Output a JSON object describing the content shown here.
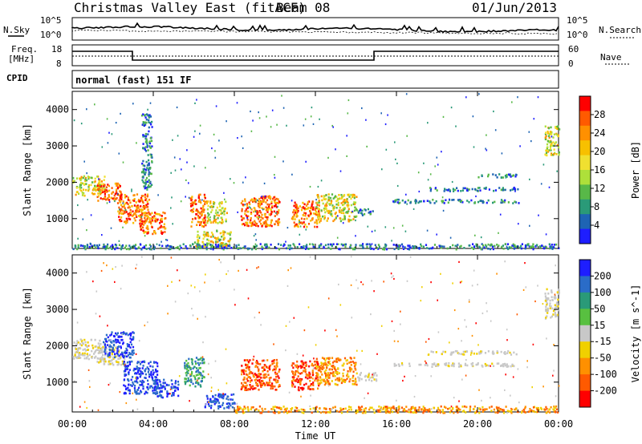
{
  "header": {
    "station": "Christmas Valley East (fitACF)",
    "beam": "Beam 08",
    "date": "01/Jun/2013"
  },
  "status_panels": {
    "nsky_label": "N.Sky",
    "nsky_top": "10^5",
    "nsky_bottom": "10^0",
    "nsearch_label": "N.Search",
    "freq_label_top": "Freq.",
    "freq_label_bottom": "[MHz]",
    "freq_tick_top": "18",
    "freq_tick_bottom": "8",
    "nave_tick_top": "60",
    "nave_tick_bottom": "0",
    "nave_label": "Nave",
    "cpid_label": "CPID",
    "cpid_text": "normal (fast) 151 IF"
  },
  "chart_data": [
    {
      "type": "heatmap",
      "panel": "power",
      "xlabel": "",
      "ylabel": "Slant Range [km]",
      "x_ticks": [
        "00:00",
        "04:00",
        "08:00",
        "12:00",
        "16:00",
        "20:00",
        "00:00"
      ],
      "x_range_hours": [
        0,
        24
      ],
      "y_ticks": [
        1000,
        2000,
        3000,
        4000
      ],
      "y_range_km": [
        180,
        4500
      ],
      "colorbar_label": "Power [dB]",
      "colorbar_ticks": [
        "28",
        "24",
        "20",
        "16",
        "12",
        "8",
        "4"
      ],
      "colorbar_colors": [
        "#ff0000",
        "#ff5a00",
        "#ff9000",
        "#f7c000",
        "#f0e030",
        "#aee03a",
        "#58b848",
        "#2a9a78",
        "#1e64b4",
        "#1e1eff"
      ],
      "regions": [
        {
          "t0": 0.0,
          "t1": 1.6,
          "r0": 1650,
          "r1": 2200,
          "level": "mid"
        },
        {
          "t0": 1.2,
          "t1": 2.4,
          "r0": 1500,
          "r1": 2000,
          "level": "high"
        },
        {
          "t0": 2.2,
          "t1": 3.8,
          "r0": 900,
          "r1": 1700,
          "level": "high"
        },
        {
          "t0": 3.3,
          "t1": 4.6,
          "r0": 600,
          "r1": 1200,
          "level": "high"
        },
        {
          "t0": 3.4,
          "t1": 3.9,
          "r0": 1800,
          "r1": 3900,
          "level": "low"
        },
        {
          "t0": 5.8,
          "t1": 6.6,
          "r0": 800,
          "r1": 1700,
          "level": "high"
        },
        {
          "t0": 6.6,
          "t1": 7.6,
          "r0": 900,
          "r1": 1500,
          "level": "mid"
        },
        {
          "t0": 6.0,
          "t1": 7.8,
          "r0": 250,
          "r1": 700,
          "level": "mid"
        },
        {
          "t0": 8.3,
          "t1": 10.2,
          "r0": 800,
          "r1": 1650,
          "level": "high"
        },
        {
          "t0": 10.8,
          "t1": 12.2,
          "r0": 800,
          "r1": 1500,
          "level": "high"
        },
        {
          "t0": 12.0,
          "t1": 14.0,
          "r0": 950,
          "r1": 1700,
          "level": "mid"
        },
        {
          "t0": 14.0,
          "t1": 14.8,
          "r0": 1100,
          "r1": 1300,
          "level": "low"
        },
        {
          "t0": 15.8,
          "t1": 22.0,
          "r0": 1450,
          "r1": 1550,
          "level": "low"
        },
        {
          "t0": 17.5,
          "t1": 22.0,
          "r0": 1780,
          "r1": 1880,
          "level": "low"
        },
        {
          "t0": 20.0,
          "t1": 22.0,
          "r0": 2150,
          "r1": 2250,
          "level": "low"
        },
        {
          "t0": 23.3,
          "t1": 24.0,
          "r0": 2750,
          "r1": 3600,
          "level": "mid"
        },
        {
          "t0": 0.0,
          "t1": 24.0,
          "r0": 180,
          "r1": 330,
          "level": "low"
        }
      ]
    },
    {
      "type": "heatmap",
      "panel": "velocity",
      "xlabel": "Time UT",
      "ylabel": "Slant Range [km]",
      "x_ticks": [
        "00:00",
        "04:00",
        "08:00",
        "12:00",
        "16:00",
        "20:00",
        "00:00"
      ],
      "x_range_hours": [
        0,
        24
      ],
      "y_ticks": [
        1000,
        2000,
        3000,
        4000
      ],
      "y_range_km": [
        180,
        4500
      ],
      "colorbar_label": "Velocity [m s^-1]",
      "colorbar_ticks": [
        "200",
        "100",
        "50",
        "15",
        "-15",
        "-50",
        "-100",
        "-200"
      ],
      "colorbar_colors": [
        "#1e1eff",
        "#2a6cc8",
        "#2a9a78",
        "#58c040",
        "#c8c8c8",
        "#f0d000",
        "#ff9000",
        "#ff5a00",
        "#ff0000"
      ],
      "regions": [
        {
          "t0": 0.0,
          "t1": 1.6,
          "r0": 1650,
          "r1": 2200,
          "level": "gray"
        },
        {
          "t0": 1.2,
          "t1": 2.6,
          "r0": 1500,
          "r1": 2000,
          "level": "gray"
        },
        {
          "t0": 1.5,
          "t1": 3.0,
          "r0": 1700,
          "r1": 2400,
          "level": "blue"
        },
        {
          "t0": 2.5,
          "t1": 4.2,
          "r0": 700,
          "r1": 1600,
          "level": "blue"
        },
        {
          "t0": 4.0,
          "t1": 5.2,
          "r0": 600,
          "r1": 1100,
          "level": "blue"
        },
        {
          "t0": 5.5,
          "t1": 6.5,
          "r0": 900,
          "r1": 1700,
          "level": "green"
        },
        {
          "t0": 6.5,
          "t1": 8.0,
          "r0": 300,
          "r1": 700,
          "level": "blue"
        },
        {
          "t0": 8.3,
          "t1": 10.2,
          "r0": 800,
          "r1": 1650,
          "level": "red"
        },
        {
          "t0": 10.8,
          "t1": 12.2,
          "r0": 800,
          "r1": 1600,
          "level": "red"
        },
        {
          "t0": 12.0,
          "t1": 14.0,
          "r0": 950,
          "r1": 1700,
          "level": "orange"
        },
        {
          "t0": 14.0,
          "t1": 15.0,
          "r0": 1050,
          "r1": 1300,
          "level": "gray"
        },
        {
          "t0": 15.8,
          "t1": 22.0,
          "r0": 1450,
          "r1": 1550,
          "level": "gray"
        },
        {
          "t0": 17.5,
          "t1": 22.0,
          "r0": 1780,
          "r1": 1880,
          "level": "gray"
        },
        {
          "t0": 23.3,
          "t1": 24.0,
          "r0": 2750,
          "r1": 3600,
          "level": "gray"
        },
        {
          "t0": 8.0,
          "t1": 24.0,
          "r0": 180,
          "r1": 360,
          "level": "orange"
        }
      ]
    }
  ]
}
